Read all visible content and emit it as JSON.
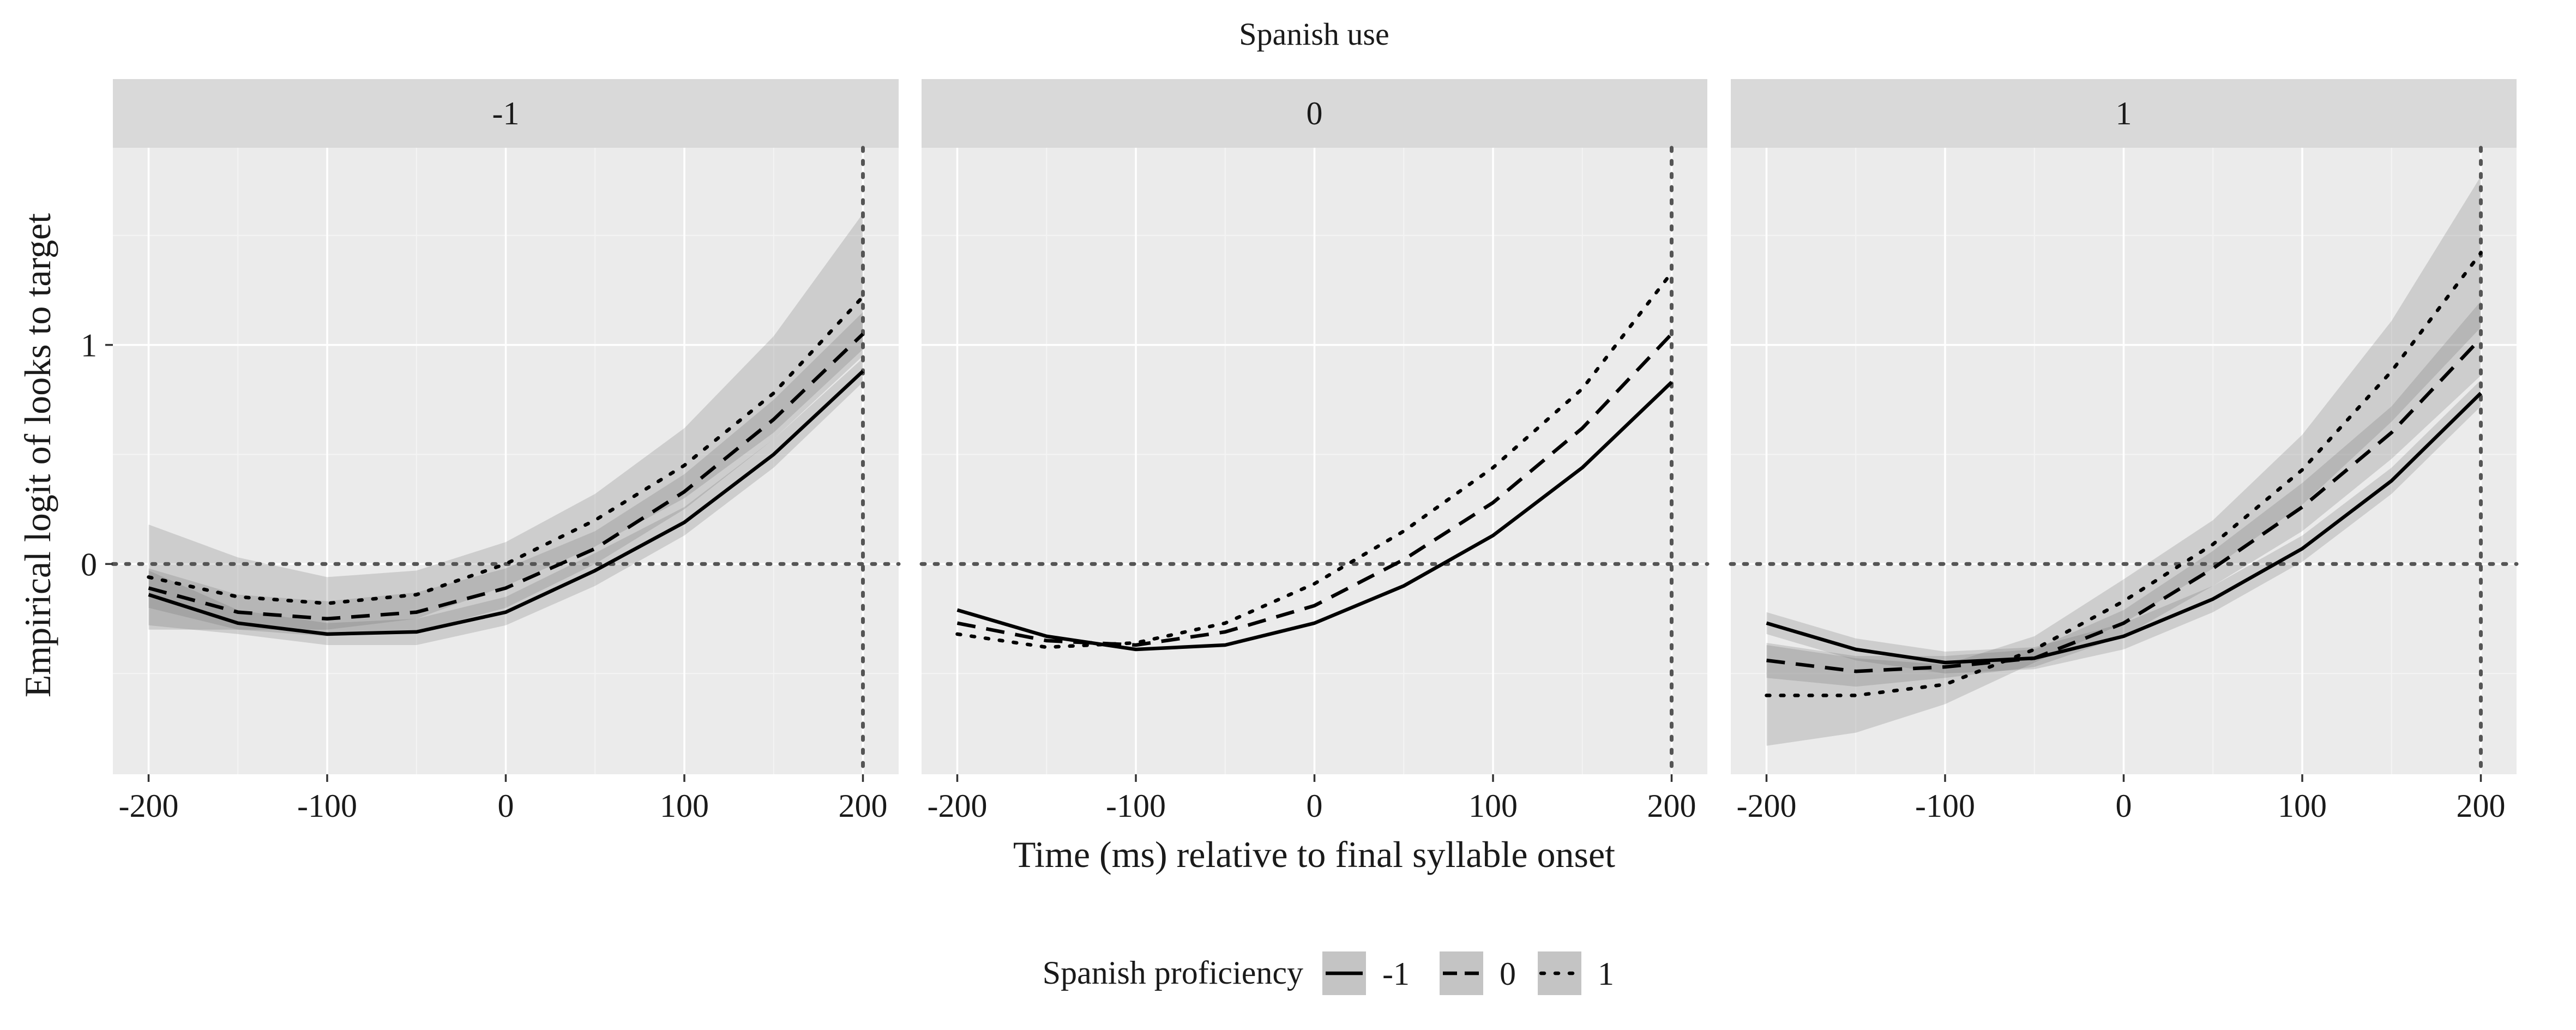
{
  "chart_data": {
    "type": "line",
    "title": "Spanish use",
    "xlabel": "Time (ms) relative to final syllable onset",
    "ylabel": "Empirical logit of looks to target",
    "x_ticks": [
      -200,
      -100,
      0,
      100,
      200
    ],
    "y_ticks": [
      0,
      1
    ],
    "xlim": [
      -220,
      220
    ],
    "ylim": [
      -0.96,
      1.9
    ],
    "grid": true,
    "reference_lines": {
      "x": 200,
      "y": 0
    },
    "legend": {
      "title": "Spanish proficiency",
      "position": "bottom",
      "entries": [
        {
          "label": "-1",
          "linetype": "solid"
        },
        {
          "label": "0",
          "linetype": "dashed"
        },
        {
          "label": "1",
          "linetype": "dotted"
        }
      ]
    },
    "x": [
      -200,
      -150,
      -100,
      -50,
      0,
      50,
      100,
      150,
      200
    ],
    "panels": [
      {
        "label": "-1",
        "series": [
          {
            "name": "-1",
            "linetype": "solid",
            "values": [
              -0.14,
              -0.27,
              -0.32,
              -0.31,
              -0.22,
              -0.03,
              0.19,
              0.5,
              0.88
            ],
            "lower": [
              -0.28,
              -0.32,
              -0.37,
              -0.37,
              -0.28,
              -0.1,
              0.13,
              0.44,
              0.83
            ],
            "upper": [
              -0.03,
              -0.21,
              -0.27,
              -0.25,
              -0.15,
              0.05,
              0.26,
              0.57,
              0.94
            ]
          },
          {
            "name": "0",
            "linetype": "dashed",
            "values": [
              -0.11,
              -0.22,
              -0.25,
              -0.22,
              -0.11,
              0.07,
              0.33,
              0.66,
              1.05
            ],
            "lower": [
              -0.2,
              -0.3,
              -0.33,
              -0.31,
              -0.2,
              0.0,
              0.25,
              0.57,
              0.95
            ],
            "upper": [
              -0.02,
              -0.14,
              -0.17,
              -0.13,
              -0.02,
              0.15,
              0.41,
              0.75,
              1.15
            ]
          },
          {
            "name": "1",
            "linetype": "dotted",
            "values": [
              -0.06,
              -0.15,
              -0.18,
              -0.14,
              0.0,
              0.2,
              0.45,
              0.78,
              1.22
            ],
            "lower": [
              -0.3,
              -0.3,
              -0.3,
              -0.25,
              -0.1,
              0.08,
              0.3,
              0.6,
              0.98
            ],
            "upper": [
              0.18,
              0.03,
              -0.06,
              -0.03,
              0.1,
              0.32,
              0.62,
              1.04,
              1.6
            ]
          }
        ]
      },
      {
        "label": "0",
        "series": [
          {
            "name": "-1",
            "linetype": "solid",
            "values": [
              -0.21,
              -0.33,
              -0.39,
              -0.37,
              -0.27,
              -0.1,
              0.13,
              0.44,
              0.83
            ]
          },
          {
            "name": "0",
            "linetype": "dashed",
            "values": [
              -0.27,
              -0.35,
              -0.37,
              -0.31,
              -0.19,
              0.02,
              0.28,
              0.62,
              1.05
            ]
          },
          {
            "name": "1",
            "linetype": "dotted",
            "values": [
              -0.32,
              -0.38,
              -0.36,
              -0.27,
              -0.09,
              0.15,
              0.44,
              0.8,
              1.33
            ]
          }
        ]
      },
      {
        "label": "1",
        "series": [
          {
            "name": "-1",
            "linetype": "solid",
            "values": [
              -0.27,
              -0.39,
              -0.45,
              -0.43,
              -0.33,
              -0.16,
              0.07,
              0.38,
              0.78
            ],
            "lower": [
              -0.32,
              -0.44,
              -0.5,
              -0.48,
              -0.39,
              -0.22,
              0.01,
              0.32,
              0.72
            ],
            "upper": [
              -0.22,
              -0.34,
              -0.4,
              -0.38,
              -0.27,
              -0.1,
              0.13,
              0.44,
              0.84
            ]
          },
          {
            "name": "0",
            "linetype": "dashed",
            "values": [
              -0.44,
              -0.49,
              -0.47,
              -0.43,
              -0.27,
              -0.02,
              0.26,
              0.6,
              1.03
            ],
            "lower": [
              -0.52,
              -0.56,
              -0.52,
              -0.47,
              -0.33,
              -0.1,
              0.15,
              0.48,
              0.86
            ],
            "upper": [
              -0.36,
              -0.42,
              -0.42,
              -0.39,
              -0.21,
              0.06,
              0.37,
              0.72,
              1.2
            ]
          },
          {
            "name": "1",
            "linetype": "dotted",
            "values": [
              -0.6,
              -0.6,
              -0.55,
              -0.39,
              -0.17,
              0.09,
              0.43,
              0.88,
              1.42
            ],
            "lower": [
              -0.83,
              -0.77,
              -0.64,
              -0.45,
              -0.27,
              -0.02,
              0.27,
              0.65,
              1.08
            ],
            "upper": [
              -0.37,
              -0.43,
              -0.46,
              -0.33,
              -0.07,
              0.2,
              0.59,
              1.11,
              1.77
            ]
          }
        ]
      }
    ]
  }
}
